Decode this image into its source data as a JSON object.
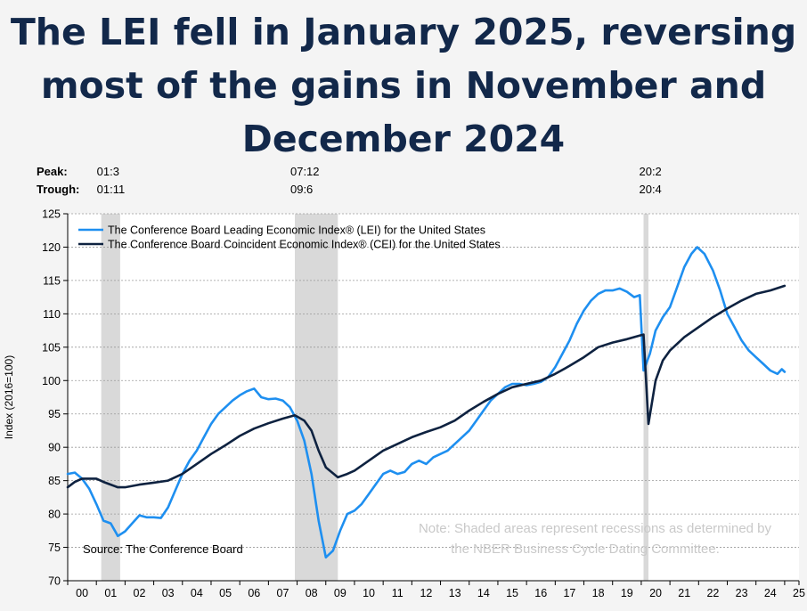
{
  "title_lines": [
    "The LEI fell in January 2025, reversing",
    "most of the gains in November and",
    "December 2024"
  ],
  "peak_label": "Peak:",
  "trough_label": "Trough:",
  "recessions": [
    {
      "peak": "01:3",
      "trough": "01:11",
      "start": 2001.17,
      "end": 2001.83
    },
    {
      "peak": "07:12",
      "trough": "09:6",
      "start": 2007.92,
      "end": 2009.42
    },
    {
      "peak": "20:2",
      "trough": "20:4",
      "start": 2020.08,
      "end": 2020.25
    }
  ],
  "source": "Source: The Conference Board",
  "note_lines": [
    "Note: Shaded areas represent recessions as determined by",
    "the NBER Business Cycle Dating Committee."
  ],
  "colors": {
    "lei": "#1e8ff0",
    "cei": "#0e2240",
    "recession": "#d9d9d9",
    "title": "#12284a"
  },
  "chart_data": {
    "type": "line",
    "ylabel": "Index (2016=100)",
    "ylim": [
      70,
      125
    ],
    "yticks": [
      70,
      75,
      80,
      85,
      90,
      95,
      100,
      105,
      110,
      115,
      120,
      125
    ],
    "xlim": [
      2000,
      2025.5
    ],
    "xtick_labels": [
      "00",
      "01",
      "02",
      "03",
      "04",
      "05",
      "06",
      "07",
      "08",
      "09",
      "10",
      "11",
      "12",
      "13",
      "14",
      "15",
      "16",
      "17",
      "18",
      "19",
      "20",
      "21",
      "22",
      "23",
      "24",
      "25"
    ],
    "grid": true,
    "legend_position": "top-left",
    "series": [
      {
        "name": "The Conference Board Leading Economic Index® (LEI) for the United States",
        "color": "#1e8ff0",
        "points": [
          [
            2000.0,
            86.0
          ],
          [
            2000.25,
            86.2
          ],
          [
            2000.5,
            85.3
          ],
          [
            2000.75,
            83.8
          ],
          [
            2001.0,
            81.5
          ],
          [
            2001.25,
            79.0
          ],
          [
            2001.5,
            78.6
          ],
          [
            2001.75,
            76.7
          ],
          [
            2002.0,
            77.4
          ],
          [
            2002.25,
            78.6
          ],
          [
            2002.5,
            79.8
          ],
          [
            2002.75,
            79.5
          ],
          [
            2003.0,
            79.5
          ],
          [
            2003.25,
            79.4
          ],
          [
            2003.5,
            81.0
          ],
          [
            2003.75,
            83.5
          ],
          [
            2004.0,
            86.0
          ],
          [
            2004.25,
            88.0
          ],
          [
            2004.5,
            89.5
          ],
          [
            2004.75,
            91.5
          ],
          [
            2005.0,
            93.5
          ],
          [
            2005.25,
            95.0
          ],
          [
            2005.5,
            96.0
          ],
          [
            2005.75,
            97.0
          ],
          [
            2006.0,
            97.8
          ],
          [
            2006.25,
            98.4
          ],
          [
            2006.5,
            98.8
          ],
          [
            2006.75,
            97.5
          ],
          [
            2007.0,
            97.2
          ],
          [
            2007.25,
            97.3
          ],
          [
            2007.5,
            97.0
          ],
          [
            2007.75,
            96.0
          ],
          [
            2008.0,
            94.0
          ],
          [
            2008.25,
            91.0
          ],
          [
            2008.5,
            86.0
          ],
          [
            2008.75,
            79.0
          ],
          [
            2009.0,
            73.5
          ],
          [
            2009.25,
            74.5
          ],
          [
            2009.5,
            77.5
          ],
          [
            2009.75,
            80.0
          ],
          [
            2010.0,
            80.5
          ],
          [
            2010.25,
            81.5
          ],
          [
            2010.5,
            83.0
          ],
          [
            2010.75,
            84.5
          ],
          [
            2011.0,
            86.0
          ],
          [
            2011.25,
            86.5
          ],
          [
            2011.5,
            86.0
          ],
          [
            2011.75,
            86.3
          ],
          [
            2012.0,
            87.5
          ],
          [
            2012.25,
            88.0
          ],
          [
            2012.5,
            87.5
          ],
          [
            2012.75,
            88.5
          ],
          [
            2013.0,
            89.0
          ],
          [
            2013.25,
            89.5
          ],
          [
            2013.5,
            90.5
          ],
          [
            2013.75,
            91.5
          ],
          [
            2014.0,
            92.5
          ],
          [
            2014.25,
            94.0
          ],
          [
            2014.5,
            95.5
          ],
          [
            2014.75,
            97.0
          ],
          [
            2015.0,
            98.0
          ],
          [
            2015.25,
            99.0
          ],
          [
            2015.5,
            99.5
          ],
          [
            2015.75,
            99.5
          ],
          [
            2016.0,
            99.3
          ],
          [
            2016.25,
            99.5
          ],
          [
            2016.5,
            99.8
          ],
          [
            2016.75,
            100.5
          ],
          [
            2017.0,
            102.0
          ],
          [
            2017.25,
            104.0
          ],
          [
            2017.5,
            106.0
          ],
          [
            2017.75,
            108.5
          ],
          [
            2018.0,
            110.5
          ],
          [
            2018.25,
            112.0
          ],
          [
            2018.5,
            113.0
          ],
          [
            2018.75,
            113.5
          ],
          [
            2019.0,
            113.5
          ],
          [
            2019.25,
            113.8
          ],
          [
            2019.5,
            113.3
          ],
          [
            2019.75,
            112.5
          ],
          [
            2019.95,
            112.8
          ],
          [
            2020.08,
            101.5
          ],
          [
            2020.3,
            104.0
          ],
          [
            2020.5,
            107.5
          ],
          [
            2020.75,
            109.5
          ],
          [
            2021.0,
            111.0
          ],
          [
            2021.25,
            114.0
          ],
          [
            2021.5,
            117.0
          ],
          [
            2021.75,
            119.0
          ],
          [
            2021.95,
            120.0
          ],
          [
            2022.2,
            119.0
          ],
          [
            2022.5,
            116.5
          ],
          [
            2022.75,
            113.5
          ],
          [
            2023.0,
            110.0
          ],
          [
            2023.25,
            108.0
          ],
          [
            2023.5,
            106.0
          ],
          [
            2023.75,
            104.5
          ],
          [
            2024.0,
            103.5
          ],
          [
            2024.25,
            102.5
          ],
          [
            2024.5,
            101.5
          ],
          [
            2024.75,
            101.0
          ],
          [
            2024.9,
            101.7
          ],
          [
            2025.0,
            101.3
          ]
        ]
      },
      {
        "name": "The Conference Board Coincident Economic Index® (CEI) for the United States",
        "color": "#0e2240",
        "points": [
          [
            2000.0,
            84.0
          ],
          [
            2000.25,
            84.8
          ],
          [
            2000.5,
            85.3
          ],
          [
            2000.75,
            85.3
          ],
          [
            2001.0,
            85.3
          ],
          [
            2001.25,
            84.8
          ],
          [
            2001.5,
            84.4
          ],
          [
            2001.75,
            84.0
          ],
          [
            2002.0,
            84.0
          ],
          [
            2002.5,
            84.4
          ],
          [
            2003.0,
            84.7
          ],
          [
            2003.5,
            85.0
          ],
          [
            2004.0,
            86.0
          ],
          [
            2004.5,
            87.5
          ],
          [
            2005.0,
            89.0
          ],
          [
            2005.5,
            90.3
          ],
          [
            2006.0,
            91.7
          ],
          [
            2006.5,
            92.8
          ],
          [
            2007.0,
            93.6
          ],
          [
            2007.5,
            94.3
          ],
          [
            2007.92,
            94.8
          ],
          [
            2008.25,
            94.0
          ],
          [
            2008.5,
            92.5
          ],
          [
            2008.75,
            89.5
          ],
          [
            2009.0,
            87.0
          ],
          [
            2009.42,
            85.5
          ],
          [
            2009.75,
            86.0
          ],
          [
            2010.0,
            86.5
          ],
          [
            2010.5,
            88.0
          ],
          [
            2011.0,
            89.5
          ],
          [
            2011.5,
            90.5
          ],
          [
            2012.0,
            91.5
          ],
          [
            2012.5,
            92.3
          ],
          [
            2013.0,
            93.0
          ],
          [
            2013.5,
            94.0
          ],
          [
            2014.0,
            95.5
          ],
          [
            2014.5,
            96.8
          ],
          [
            2015.0,
            98.0
          ],
          [
            2015.5,
            99.0
          ],
          [
            2016.0,
            99.5
          ],
          [
            2016.5,
            100.0
          ],
          [
            2017.0,
            101.0
          ],
          [
            2017.5,
            102.2
          ],
          [
            2018.0,
            103.5
          ],
          [
            2018.5,
            105.0
          ],
          [
            2019.0,
            105.7
          ],
          [
            2019.5,
            106.2
          ],
          [
            2020.0,
            106.8
          ],
          [
            2020.08,
            106.9
          ],
          [
            2020.25,
            93.5
          ],
          [
            2020.5,
            100.0
          ],
          [
            2020.75,
            103.0
          ],
          [
            2021.0,
            104.5
          ],
          [
            2021.5,
            106.5
          ],
          [
            2022.0,
            108.0
          ],
          [
            2022.5,
            109.5
          ],
          [
            2023.0,
            110.8
          ],
          [
            2023.5,
            112.0
          ],
          [
            2024.0,
            113.0
          ],
          [
            2024.5,
            113.5
          ],
          [
            2025.0,
            114.2
          ]
        ]
      }
    ]
  }
}
